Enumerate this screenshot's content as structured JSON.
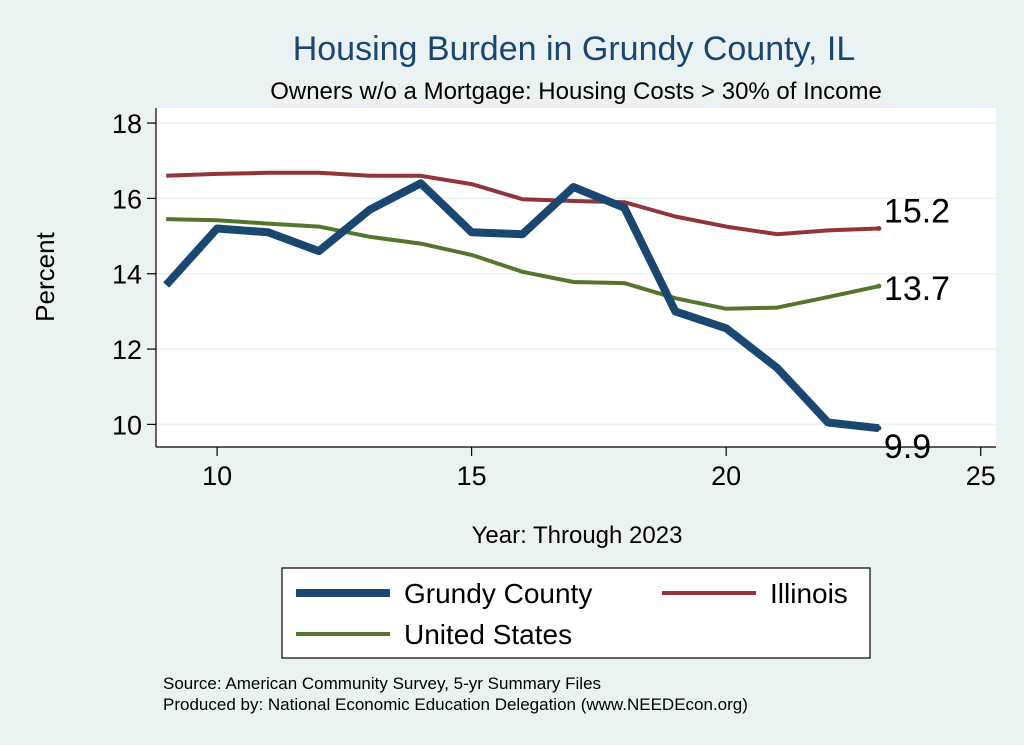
{
  "chart_data": {
    "type": "line",
    "title": "Housing Burden in Grundy County, IL",
    "subtitle": "Owners w/o a Mortgage: Housing Costs > 30% of Income",
    "xlabel": "Year: Through 2023",
    "ylabel": "Percent",
    "xlim": [
      8.8,
      25.3
    ],
    "ylim": [
      9.4,
      18.4
    ],
    "xticks": [
      10,
      15,
      20,
      25
    ],
    "yticks": [
      10,
      12,
      14,
      16,
      18
    ],
    "grid": true,
    "legend_position": "bottom",
    "x": [
      9,
      10,
      11,
      12,
      13,
      14,
      15,
      16,
      17,
      18,
      19,
      20,
      21,
      22,
      23
    ],
    "series": [
      {
        "name": "Grundy County",
        "color": "#1a476f",
        "values": [
          13.7,
          15.2,
          15.1,
          14.6,
          15.7,
          16.4,
          15.1,
          15.05,
          16.3,
          15.75,
          13.0,
          12.55,
          11.5,
          10.05,
          9.9
        ],
        "end_label": "9.9"
      },
      {
        "name": "Illinois",
        "color": "#90353b",
        "values": [
          16.6,
          16.65,
          16.68,
          16.68,
          16.6,
          16.6,
          16.38,
          15.98,
          15.93,
          15.9,
          15.52,
          15.25,
          15.05,
          15.15,
          15.2
        ],
        "end_label": "15.2"
      },
      {
        "name": "United States",
        "color": "#55752f",
        "values": [
          15.45,
          15.42,
          15.33,
          15.25,
          14.98,
          14.8,
          14.5,
          14.05,
          13.78,
          13.75,
          13.35,
          13.07,
          13.1,
          13.38,
          13.67
        ],
        "end_label": "13.7"
      }
    ],
    "source_lines": [
      "Source: American Community Survey, 5-yr Summary Files",
      "Produced by: National Economic Education Delegation (www.NEEDEcon.org)"
    ]
  }
}
